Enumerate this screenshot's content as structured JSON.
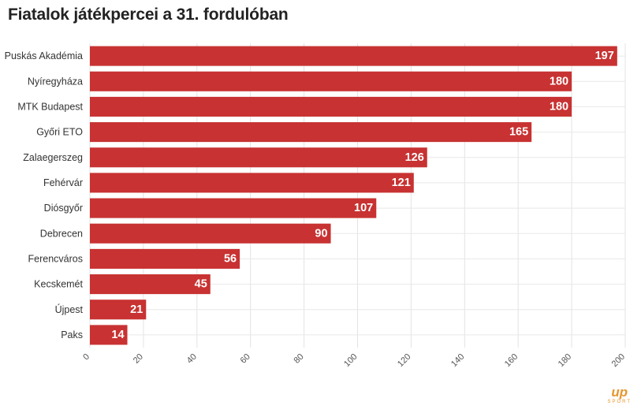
{
  "chart_data": {
    "type": "bar",
    "orientation": "horizontal",
    "title": "Fiatalok játékpercei a 31. fordulóban",
    "categories": [
      "Puskás Akadémia",
      "Nyíregyháza",
      "MTK Budapest",
      "Győri ETO",
      "Zalaegerszeg",
      "Fehérvár",
      "Diósgyőr",
      "Debrecen",
      "Ferencváros",
      "Kecskemét",
      "Újpest",
      "Paks"
    ],
    "values": [
      197,
      180,
      180,
      165,
      126,
      121,
      107,
      90,
      56,
      45,
      21,
      14
    ],
    "xlim": [
      0,
      200
    ],
    "xticks": [
      0,
      20,
      40,
      60,
      80,
      100,
      120,
      140,
      160,
      180,
      200
    ],
    "grid": true,
    "bar_color": "#c83232"
  },
  "branding": {
    "logo_main": "up",
    "logo_sub": "SPORT",
    "accent": "#e8962e"
  }
}
